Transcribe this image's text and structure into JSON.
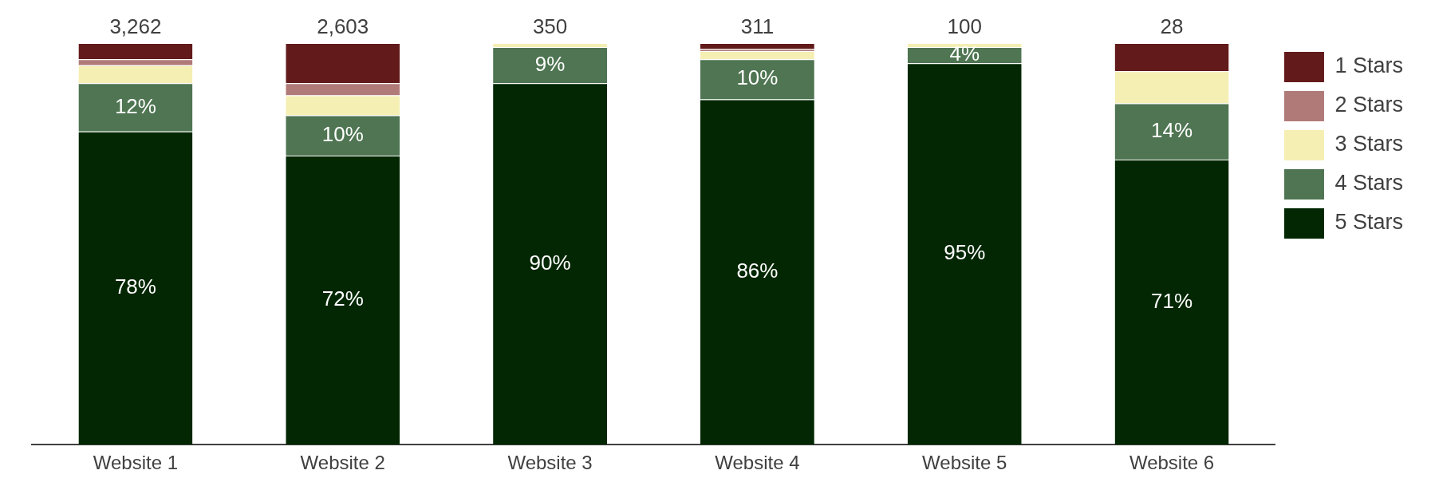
{
  "chart_data": {
    "type": "bar",
    "stacked": true,
    "categories": [
      "Website 1",
      "Website 2",
      "Website 3",
      "Website 4",
      "Website 5",
      "Website 6"
    ],
    "ylim": [
      0,
      100
    ],
    "tick_labels": "x",
    "legend": "right",
    "annotations": [
      {
        "text": "3,262",
        "x": "Website 1",
        "y": 100
      },
      {
        "text": "2,603",
        "x": "Website 2",
        "y": 100
      },
      {
        "text": "350",
        "x": "Website 3",
        "y": 100
      },
      {
        "text": "311",
        "x": "Website 4",
        "y": 100
      },
      {
        "text": "100",
        "x": "Website 5",
        "y": 100
      },
      {
        "text": "28",
        "x": "Website 6",
        "y": 100
      }
    ],
    "series": [
      {
        "name": "5 Stars",
        "color": "#022702",
        "values": [
          78,
          72,
          90,
          86,
          95,
          71
        ],
        "value_labels": [
          "78%",
          "72%",
          "90%",
          "86%",
          "95%",
          "71%"
        ]
      },
      {
        "name": "4 Stars",
        "color": "#4f7552",
        "values": [
          12,
          10,
          9,
          10,
          4,
          14
        ],
        "value_labels": [
          "12%",
          "10%",
          "9%",
          "10%",
          "4%",
          "14%"
        ]
      },
      {
        "name": "3 Stars",
        "color": "#f5efb3",
        "values": [
          4.5,
          5,
          1,
          2,
          1,
          8
        ],
        "value_labels": [
          null,
          null,
          null,
          null,
          null,
          null
        ]
      },
      {
        "name": "2 Stars",
        "color": "#b07a78",
        "values": [
          1.5,
          3,
          0,
          0.5,
          0,
          0
        ],
        "value_labels": [
          null,
          null,
          null,
          null,
          null,
          null
        ]
      },
      {
        "name": "1 Stars",
        "color": "#631a1a",
        "values": [
          4,
          10,
          0,
          1.5,
          0,
          7
        ],
        "value_labels": [
          null,
          null,
          null,
          null,
          null,
          null
        ]
      }
    ]
  }
}
